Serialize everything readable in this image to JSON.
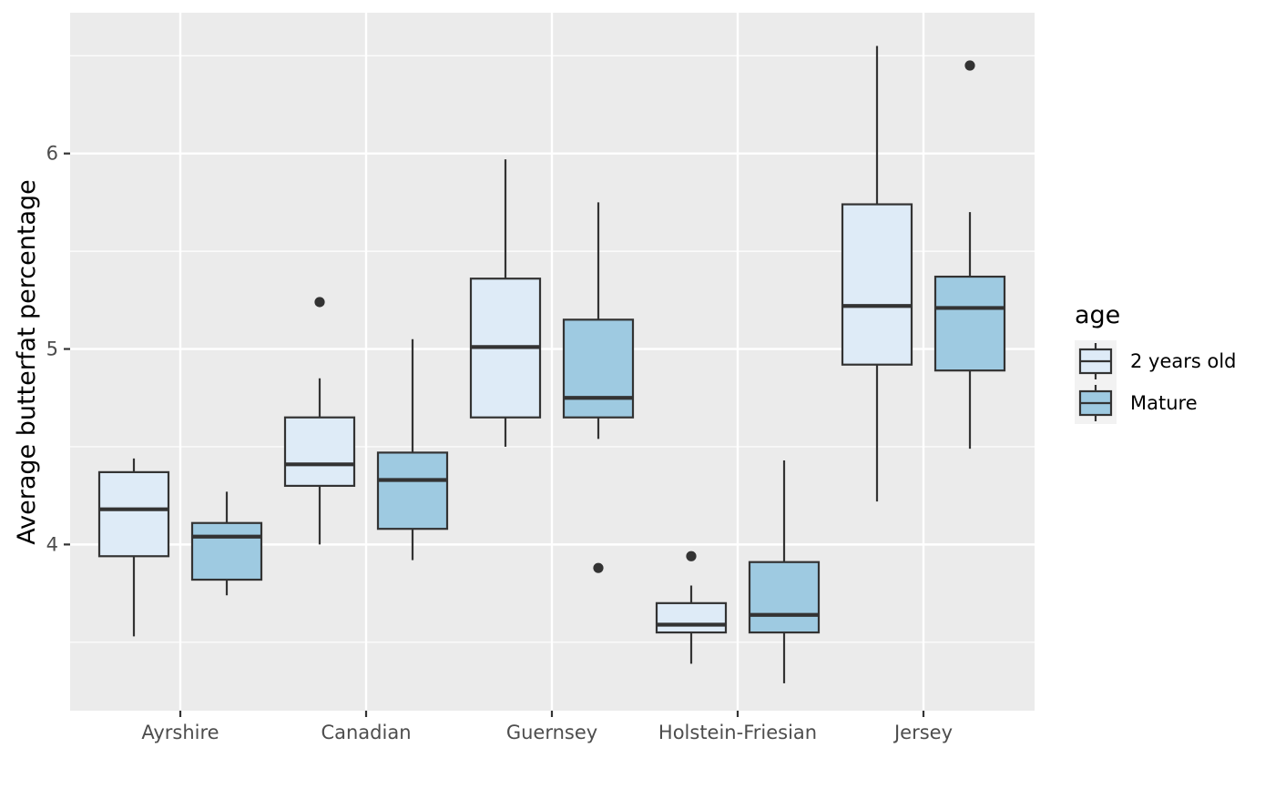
{
  "chart_data": {
    "type": "boxplot",
    "title": "",
    "xlabel": "",
    "ylabel": "Average butterfat percentage",
    "ylim": [
      3.15,
      6.72
    ],
    "yticks": [
      4,
      5,
      6
    ],
    "categories": [
      "Ayrshire",
      "Canadian",
      "Guernsey",
      "Holstein-Friesian",
      "Jersey"
    ],
    "grid": true,
    "legend": {
      "title": "age",
      "placement": "right",
      "entries": [
        "2 years old",
        "Mature"
      ]
    },
    "series": [
      {
        "name": "2 years old",
        "color": "#deebf7",
        "boxes": [
          {
            "category": "Ayrshire",
            "whisker_low": 3.53,
            "q1": 3.94,
            "median": 4.18,
            "q3": 4.37,
            "whisker_high": 4.44,
            "outliers": []
          },
          {
            "category": "Canadian",
            "whisker_low": 4.0,
            "q1": 4.3,
            "median": 4.41,
            "q3": 4.65,
            "whisker_high": 4.85,
            "outliers": [
              5.24
            ]
          },
          {
            "category": "Guernsey",
            "whisker_low": 4.5,
            "q1": 4.65,
            "median": 5.01,
            "q3": 5.36,
            "whisker_high": 5.97,
            "outliers": []
          },
          {
            "category": "Holstein-Friesian",
            "whisker_low": 3.39,
            "q1": 3.55,
            "median": 3.59,
            "q3": 3.7,
            "whisker_high": 3.79,
            "outliers": [
              3.94
            ]
          },
          {
            "category": "Jersey",
            "whisker_low": 4.22,
            "q1": 4.92,
            "median": 5.22,
            "q3": 5.74,
            "whisker_high": 6.55,
            "outliers": []
          }
        ]
      },
      {
        "name": "Mature",
        "color": "#9ecae1",
        "boxes": [
          {
            "category": "Ayrshire",
            "whisker_low": 3.74,
            "q1": 3.82,
            "median": 4.04,
            "q3": 4.11,
            "whisker_high": 4.27,
            "outliers": []
          },
          {
            "category": "Canadian",
            "whisker_low": 3.92,
            "q1": 4.08,
            "median": 4.33,
            "q3": 4.47,
            "whisker_high": 5.05,
            "outliers": []
          },
          {
            "category": "Guernsey",
            "whisker_low": 4.54,
            "q1": 4.65,
            "median": 4.75,
            "q3": 5.15,
            "whisker_high": 5.75,
            "outliers": [
              3.88
            ]
          },
          {
            "category": "Holstein-Friesian",
            "whisker_low": 3.29,
            "q1": 3.55,
            "median": 3.64,
            "q3": 3.91,
            "whisker_high": 4.43,
            "outliers": []
          },
          {
            "category": "Jersey",
            "whisker_low": 4.49,
            "q1": 4.89,
            "median": 5.21,
            "q3": 5.37,
            "whisker_high": 5.7,
            "outliers": [
              6.45
            ]
          }
        ]
      }
    ]
  }
}
